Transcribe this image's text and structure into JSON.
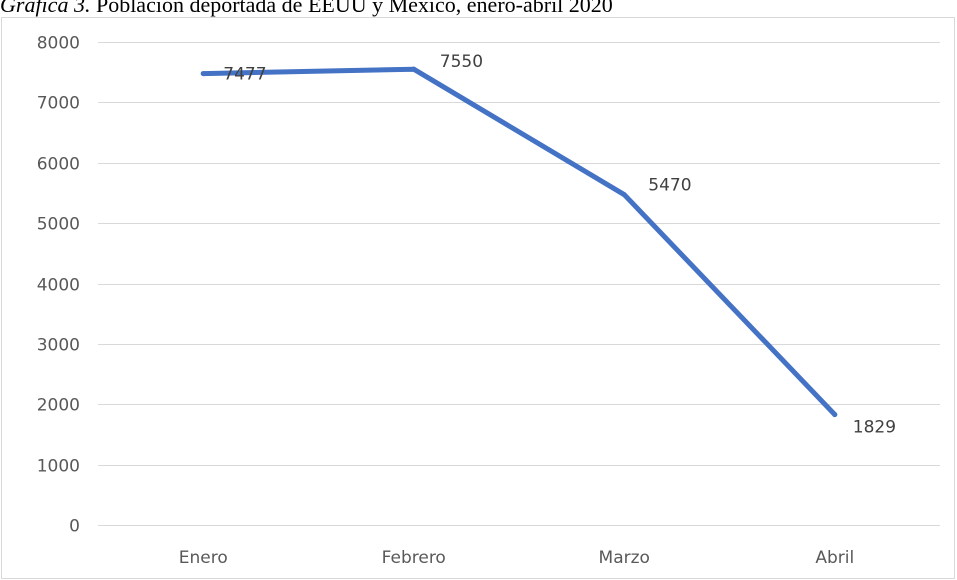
{
  "caption": {
    "lead": "Gráfica 3.",
    "text": " Población deportada de EEUU y México, enero-abril 2020"
  },
  "chart_data": {
    "type": "line",
    "categories": [
      "Enero",
      "Febrero",
      "Marzo",
      "Abril"
    ],
    "series": [
      {
        "values": [
          7477,
          7550,
          5470,
          1829
        ],
        "color": "#4472c4"
      }
    ],
    "data_labels": [
      "7477",
      "7550",
      "5470",
      "1829"
    ],
    "ylim": [
      0,
      8000
    ],
    "yticks": [
      0,
      1000,
      2000,
      3000,
      4000,
      5000,
      6000,
      7000,
      8000
    ],
    "grid": true,
    "gridline_color": "#d9d9d9",
    "axis_label_color": "#595959",
    "legend": "none"
  }
}
